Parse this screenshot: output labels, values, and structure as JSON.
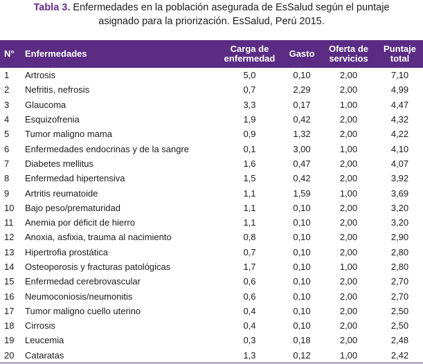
{
  "caption": {
    "label": "Tabla 3.",
    "line1": " Enfermedades en la población asegurada de EsSalud según el puntaje",
    "line2": "asignado para la priorización. EsSalud, Perú 2015."
  },
  "headers": {
    "n": "N°",
    "disease": "Enfermedades",
    "burden_line1": "Carga de",
    "burden_line2": "enfermedad",
    "cost": "Gasto",
    "services_line1": "Oferta de",
    "services_line2": "servicios",
    "total_line1": "Puntaje",
    "total_line2": "total"
  },
  "rows": [
    {
      "n": "1",
      "disease": "Artrosis",
      "burden": "5,0",
      "cost": "0,10",
      "services": "2,00",
      "total": "7,10"
    },
    {
      "n": "2",
      "disease": "Nefritis, nefrosis",
      "burden": "0,7",
      "cost": "2,29",
      "services": "2,00",
      "total": "4,99"
    },
    {
      "n": "3",
      "disease": "Glaucoma",
      "burden": "3,3",
      "cost": "0,17",
      "services": "1,00",
      "total": "4,47"
    },
    {
      "n": "4",
      "disease": "Esquizofrenia",
      "burden": "1,9",
      "cost": "0,42",
      "services": "2,00",
      "total": "4,32"
    },
    {
      "n": "5",
      "disease": "Tumor maligno mama",
      "burden": "0,9",
      "cost": "1,32",
      "services": "2,00",
      "total": "4,22"
    },
    {
      "n": "6",
      "disease": "Enfermedades endocrinas y de la sangre",
      "burden": "0,1",
      "cost": "3,00",
      "services": "1,00",
      "total": "4,10"
    },
    {
      "n": "7",
      "disease": "Diabetes mellitus",
      "burden": "1,6",
      "cost": "0,47",
      "services": "2,00",
      "total": "4,07"
    },
    {
      "n": "8",
      "disease": "Enfermedad hipertensiva",
      "burden": "1,5",
      "cost": "0,42",
      "services": "2,00",
      "total": "3,92"
    },
    {
      "n": "9",
      "disease": "Artritis reumatoide",
      "burden": "1,1",
      "cost": "1,59",
      "services": "1,00",
      "total": "3,69"
    },
    {
      "n": "10",
      "disease": "Bajo peso/prematuridad",
      "burden": "1,1",
      "cost": "0,10",
      "services": "2,00",
      "total": "3,20"
    },
    {
      "n": "11",
      "disease": "Anemia por déficit de hierro",
      "burden": "1,1",
      "cost": "0,10",
      "services": "2,00",
      "total": "3,20"
    },
    {
      "n": "12",
      "disease": "Anoxia, asfixia, trauma al nacimiento",
      "burden": "0,8",
      "cost": "0,10",
      "services": "2,00",
      "total": "2,90"
    },
    {
      "n": "13",
      "disease": "Hipertrofia prostática",
      "burden": "0,7",
      "cost": "0,10",
      "services": "2,00",
      "total": "2,80"
    },
    {
      "n": "14",
      "disease": "Osteoporosis y fracturas patológicas",
      "burden": "1,7",
      "cost": "0,10",
      "services": "1,00",
      "total": "2,80"
    },
    {
      "n": "15",
      "disease": "Enfermedad cerebrovascular",
      "burden": "0,6",
      "cost": "0,10",
      "services": "2,00",
      "total": "2,70"
    },
    {
      "n": "16",
      "disease": "Neumoconiosis/neumonitis",
      "burden": "0,6",
      "cost": "0,10",
      "services": "2,00",
      "total": "2,70"
    },
    {
      "n": "17",
      "disease": "Tumor maligno cuello uterino",
      "burden": "0,4",
      "cost": "0,10",
      "services": "2,00",
      "total": "2,50"
    },
    {
      "n": "18",
      "disease": "Cirrosis",
      "burden": "0,4",
      "cost": "0,10",
      "services": "2,00",
      "total": "2,50"
    },
    {
      "n": "19",
      "disease": "Leucemia",
      "burden": "0,3",
      "cost": "0,18",
      "services": "2,00",
      "total": "2,48"
    },
    {
      "n": "20",
      "disease": "Cataratas",
      "burden": "1,3",
      "cost": "0,12",
      "services": "1,00",
      "total": "2,42"
    }
  ]
}
